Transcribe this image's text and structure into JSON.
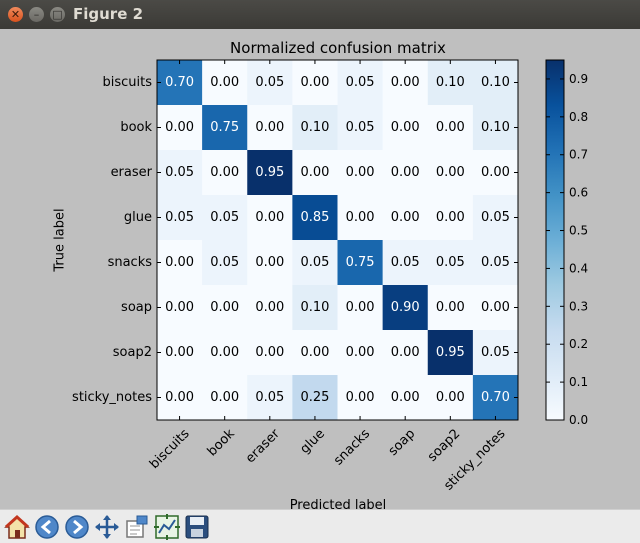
{
  "window": {
    "title": "Figure 2"
  },
  "chart_data": {
    "type": "heatmap",
    "title": "Normalized confusion matrix",
    "xlabel": "Predicted label",
    "ylabel": "True label",
    "x_categories": [
      "biscuits",
      "book",
      "eraser",
      "glue",
      "snacks",
      "soap",
      "soap2",
      "sticky_notes"
    ],
    "y_categories": [
      "biscuits",
      "book",
      "eraser",
      "glue",
      "snacks",
      "soap",
      "soap2",
      "sticky_notes"
    ],
    "values": [
      [
        "0.70",
        "0.00",
        "0.05",
        "0.00",
        "0.05",
        "0.00",
        "0.10",
        "0.10"
      ],
      [
        "0.00",
        "0.75",
        "0.00",
        "0.10",
        "0.05",
        "0.00",
        "0.00",
        "0.10"
      ],
      [
        "0.05",
        "0.00",
        "0.95",
        "0.00",
        "0.00",
        "0.00",
        "0.00",
        "0.00"
      ],
      [
        "0.05",
        "0.05",
        "0.00",
        "0.85",
        "0.00",
        "0.00",
        "0.00",
        "0.05"
      ],
      [
        "0.00",
        "0.05",
        "0.00",
        "0.05",
        "0.75",
        "0.05",
        "0.05",
        "0.05"
      ],
      [
        "0.00",
        "0.00",
        "0.00",
        "0.10",
        "0.00",
        "0.90",
        "0.00",
        "0.00"
      ],
      [
        "0.00",
        "0.00",
        "0.00",
        "0.00",
        "0.00",
        "0.00",
        "0.95",
        "0.05"
      ],
      [
        "0.00",
        "0.00",
        "0.05",
        "0.25",
        "0.00",
        "0.00",
        "0.00",
        "0.70"
      ]
    ],
    "colormap": "Blues",
    "vmin": 0.0,
    "vmax": 0.95,
    "colorbar_ticks": [
      "0.0",
      "0.1",
      "0.2",
      "0.3",
      "0.4",
      "0.5",
      "0.6",
      "0.7",
      "0.8",
      "0.9"
    ]
  },
  "toolbar": {
    "items": [
      {
        "name": "home-icon"
      },
      {
        "name": "back-icon"
      },
      {
        "name": "forward-icon"
      },
      {
        "name": "pan-icon"
      },
      {
        "name": "zoom-icon"
      },
      {
        "name": "subplots-icon"
      },
      {
        "name": "save-icon"
      }
    ]
  }
}
